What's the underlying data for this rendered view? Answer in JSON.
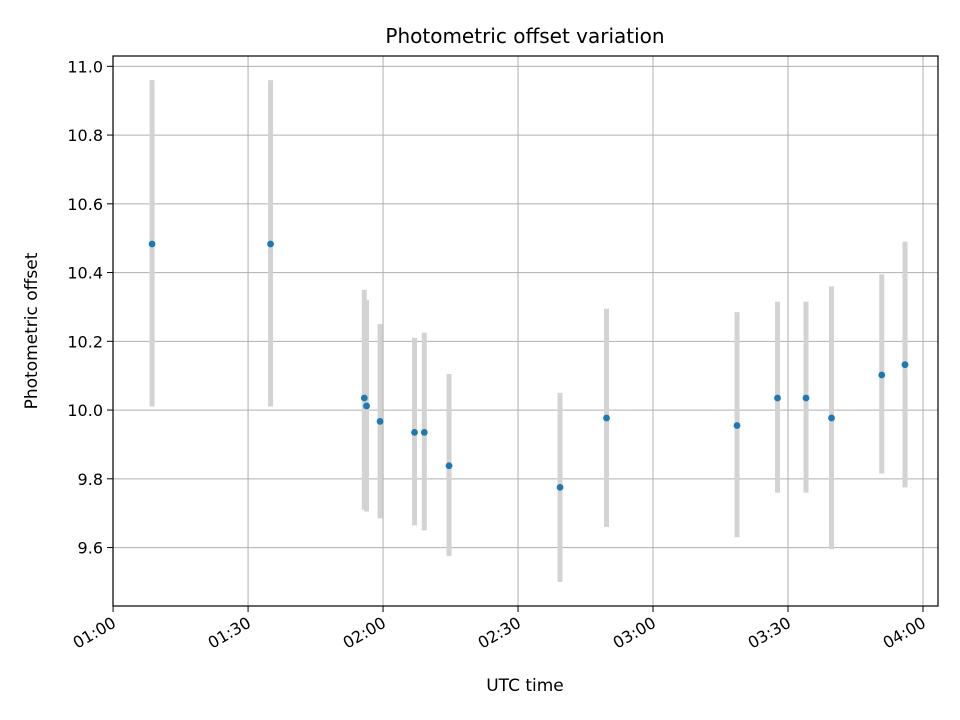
{
  "chart_data": {
    "type": "scatter",
    "title": "Photometric offset variation",
    "xlabel": "UTC time",
    "ylabel": "Photometric offset",
    "x_unit": "UTC HH:MM",
    "xlim": [
      "00:59:59",
      "04:03:20"
    ],
    "ylim": [
      9.43,
      11.03
    ],
    "xticks": [
      "01:00",
      "01:30",
      "02:00",
      "02:30",
      "03:00",
      "03:30",
      "04:00"
    ],
    "yticks": [
      "9.6",
      "9.8",
      "10.0",
      "10.2",
      "10.4",
      "10.6",
      "10.8",
      "11.0"
    ],
    "grid": true,
    "point_color": "#1f77b4",
    "errorbar_color": "#d3d3d3",
    "points": [
      {
        "x": "01:08:40",
        "y": 10.483,
        "ylow": 10.01,
        "yhigh": 10.96
      },
      {
        "x": "01:35:00",
        "y": 10.483,
        "ylow": 10.01,
        "yhigh": 10.96
      },
      {
        "x": "01:55:50",
        "y": 10.035,
        "ylow": 9.71,
        "yhigh": 10.35
      },
      {
        "x": "01:56:20",
        "y": 10.012,
        "ylow": 9.705,
        "yhigh": 10.32
      },
      {
        "x": "01:59:20",
        "y": 9.967,
        "ylow": 9.685,
        "yhigh": 10.25
      },
      {
        "x": "02:07:00",
        "y": 9.935,
        "ylow": 9.665,
        "yhigh": 10.21
      },
      {
        "x": "02:09:10",
        "y": 9.935,
        "ylow": 9.65,
        "yhigh": 10.225
      },
      {
        "x": "02:14:40",
        "y": 9.838,
        "ylow": 9.575,
        "yhigh": 10.105
      },
      {
        "x": "02:39:20",
        "y": 9.775,
        "ylow": 9.5,
        "yhigh": 10.05
      },
      {
        "x": "02:49:40",
        "y": 9.977,
        "ylow": 9.66,
        "yhigh": 10.295
      },
      {
        "x": "03:18:40",
        "y": 9.955,
        "ylow": 9.63,
        "yhigh": 10.285
      },
      {
        "x": "03:27:40",
        "y": 10.035,
        "ylow": 9.76,
        "yhigh": 10.315
      },
      {
        "x": "03:34:00",
        "y": 10.035,
        "ylow": 9.76,
        "yhigh": 10.315
      },
      {
        "x": "03:39:40",
        "y": 9.977,
        "ylow": 9.595,
        "yhigh": 10.36
      },
      {
        "x": "03:50:50",
        "y": 10.102,
        "ylow": 9.815,
        "yhigh": 10.395
      },
      {
        "x": "03:56:00",
        "y": 10.132,
        "ylow": 9.775,
        "yhigh": 10.49
      }
    ]
  }
}
